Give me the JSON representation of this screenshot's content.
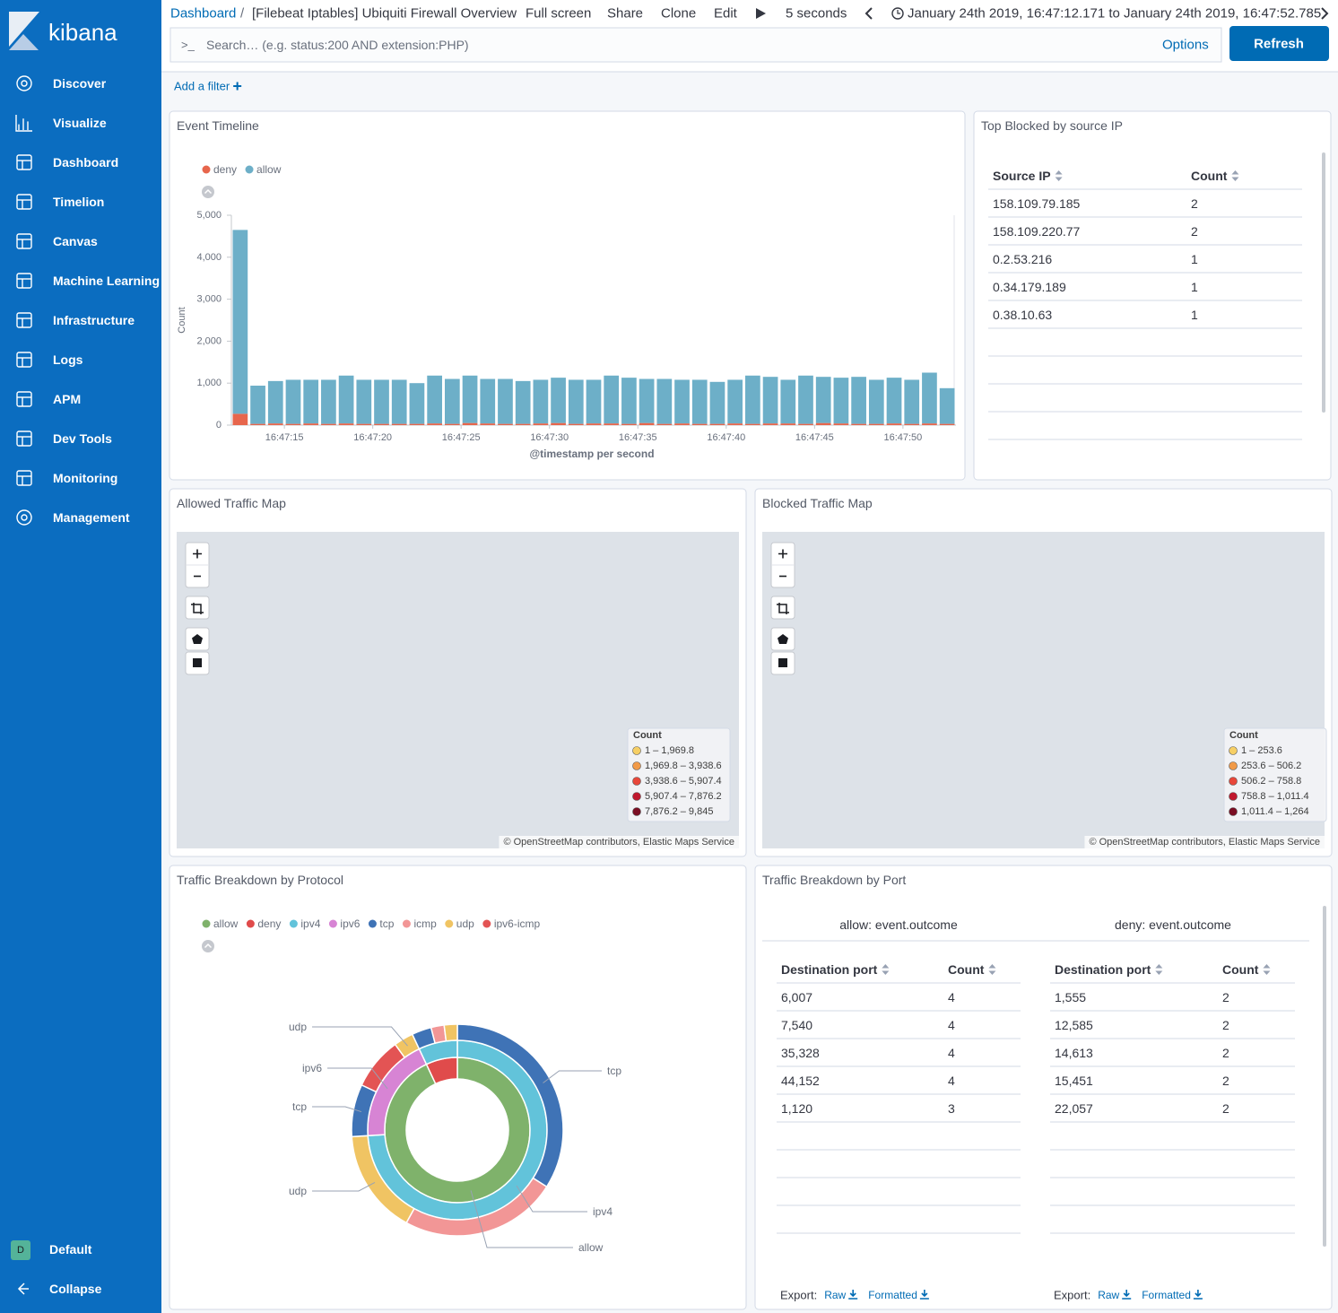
{
  "sidebar": {
    "brand": "kibana",
    "nav": [
      "Discover",
      "Visualize",
      "Dashboard",
      "Timelion",
      "Canvas",
      "Machine Learning",
      "Infrastructure",
      "Logs",
      "APM",
      "Dev Tools",
      "Monitoring",
      "Management"
    ],
    "space_initial": "D",
    "space": "Default",
    "collapse": "Collapse"
  },
  "header": {
    "breadcrumb_root": "Dashboard",
    "breadcrumb_separator": "/",
    "breadcrumb_current": "[Filebeat Iptables] Ubiquiti Firewall Overview",
    "actions": [
      "Full screen",
      "Share",
      "Clone",
      "Edit"
    ],
    "interval": "5 seconds",
    "time_range": "January 24th 2019, 16:47:12.171 to January 24th 2019, 16:47:52.785",
    "search_prompt": ">_",
    "search_placeholder": "Search… (e.g. status:200 AND extension:PHP)",
    "options": "Options",
    "refresh": "Refresh",
    "add_filter": "Add a filter"
  },
  "panels": {
    "timeline": {
      "title": "Event Timeline",
      "chart": {
        "type": "bar",
        "stacked": true,
        "categories": [
          null,
          null,
          null,
          "16:47:15",
          null,
          null,
          null,
          null,
          "16:47:20",
          null,
          null,
          null,
          null,
          "16:47:25",
          null,
          null,
          null,
          null,
          "16:47:30",
          null,
          null,
          null,
          null,
          "16:47:35",
          null,
          null,
          null,
          null,
          "16:47:40",
          null,
          null,
          null,
          null,
          "16:47:45",
          null,
          null,
          null,
          null,
          "16:47:50",
          null,
          null
        ],
        "series": [
          {
            "name": "deny",
            "color": "#e7664c",
            "values": [
              270,
              30,
              40,
              30,
              40,
              30,
              40,
              30,
              30,
              30,
              30,
              40,
              30,
              50,
              40,
              30,
              30,
              40,
              50,
              30,
              40,
              40,
              30,
              50,
              30,
              40,
              30,
              30,
              40,
              30,
              40,
              40,
              30,
              50,
              40,
              30,
              30,
              40,
              30,
              40,
              30
            ]
          },
          {
            "name": "allow",
            "color": "#6dafc8",
            "values": [
              4380,
              910,
              1010,
              1050,
              1040,
              1050,
              1140,
              1050,
              1050,
              1050,
              970,
              1140,
              1070,
              1130,
              1060,
              1070,
              1020,
              1040,
              1080,
              1050,
              1040,
              1140,
              1100,
              1050,
              1070,
              1040,
              1050,
              1000,
              1040,
              1150,
              1110,
              1040,
              1150,
              1100,
              1090,
              1120,
              1050,
              1090,
              1050,
              1210,
              850
            ]
          }
        ],
        "ylabel": "Count",
        "xlabel": "@timestamp per second",
        "ylim": [
          0,
          5000
        ],
        "yticks": [
          0,
          {
            "value": 1000,
            "label": "1,000"
          },
          {
            "value": 2000,
            "label": "2,000"
          },
          {
            "value": 3000,
            "label": "3,000"
          },
          {
            "value": 4000,
            "label": "4,000"
          },
          {
            "value": 5000,
            "label": "5,000"
          }
        ]
      }
    },
    "top_blocked": {
      "title": "Top Blocked by source IP",
      "columns": [
        "Source IP",
        "Count"
      ],
      "rows": [
        [
          "158.109.79.185",
          2
        ],
        [
          "158.109.220.77",
          2
        ],
        [
          "0.2.53.216",
          1
        ],
        [
          "0.34.179.189",
          1
        ],
        [
          "0.38.10.63",
          1
        ]
      ]
    },
    "allowed_map": {
      "title": "Allowed Traffic Map",
      "legend_title": "Count",
      "legend": [
        {
          "label": "1 – 1,969.8",
          "color": "#f6cf65"
        },
        {
          "label": "1,969.8 – 3,938.6",
          "color": "#f19a48"
        },
        {
          "label": "3,938.6 – 5,907.4",
          "color": "#e8473a"
        },
        {
          "label": "5,907.4 – 7,876.2",
          "color": "#c0182e"
        },
        {
          "label": "7,876.2 – 9,845",
          "color": "#7a0e23"
        }
      ],
      "attribution": "© OpenStreetMap contributors, Elastic Maps Service"
    },
    "blocked_map": {
      "title": "Blocked Traffic Map",
      "legend_title": "Count",
      "legend": [
        {
          "label": "1 – 253.6",
          "color": "#f6cf65"
        },
        {
          "label": "253.6 – 506.2",
          "color": "#f19a48"
        },
        {
          "label": "506.2 – 758.8",
          "color": "#e8473a"
        },
        {
          "label": "758.8 – 1,011.4",
          "color": "#c0182e"
        },
        {
          "label": "1,011.4 – 1,264",
          "color": "#7a0e23"
        }
      ],
      "attribution": "© OpenStreetMap contributors, Elastic Maps Service"
    },
    "protocol": {
      "title": "Traffic Breakdown by Protocol",
      "chart": {
        "type": "sunburst",
        "legend": [
          {
            "name": "allow",
            "color": "#7fb26b"
          },
          {
            "name": "deny",
            "color": "#e04b4b"
          },
          {
            "name": "ipv4",
            "color": "#62c3da"
          },
          {
            "name": "ipv6",
            "color": "#d784d4"
          },
          {
            "name": "tcp",
            "color": "#3f73b6"
          },
          {
            "name": "icmp",
            "color": "#f29696"
          },
          {
            "name": "udp",
            "color": "#f0c463"
          },
          {
            "name": "ipv6-icmp",
            "color": "#e35454"
          }
        ],
        "rings": [
          {
            "name": "allow",
            "value": 93,
            "children": [
              {
                "name": "ipv4",
                "value": 74,
                "children": [
                  {
                    "name": "tcp",
                    "value": 34
                  },
                  {
                    "name": "icmp",
                    "value": 24
                  },
                  {
                    "name": "udp",
                    "value": 16
                  }
                ]
              },
              {
                "name": "ipv6",
                "value": 19,
                "children": [
                  {
                    "name": "tcp",
                    "value": 8
                  },
                  {
                    "name": "ipv6-icmp",
                    "value": 8
                  },
                  {
                    "name": "udp",
                    "value": 3
                  }
                ]
              }
            ]
          },
          {
            "name": "deny",
            "value": 7,
            "children": [
              {
                "name": "ipv4",
                "value": 7,
                "children": [
                  {
                    "name": "tcp",
                    "value": 3
                  },
                  {
                    "name": "icmp",
                    "value": 2
                  },
                  {
                    "name": "udp",
                    "value": 2
                  }
                ]
              }
            ]
          }
        ]
      }
    },
    "ports": {
      "title": "Traffic Breakdown by Port",
      "tables": [
        {
          "caption": "allow: event.outcome",
          "columns": [
            "Destination port",
            "Count"
          ],
          "rows": [
            [
              "6,007",
              4
            ],
            [
              "7,540",
              4
            ],
            [
              "35,328",
              4
            ],
            [
              "44,152",
              4
            ],
            [
              "1,120",
              3
            ]
          ],
          "export": "Export:",
          "raw": "Raw",
          "formatted": "Formatted"
        },
        {
          "caption": "deny: event.outcome",
          "columns": [
            "Destination port",
            "Count"
          ],
          "rows": [
            [
              "1,555",
              2
            ],
            [
              "12,585",
              2
            ],
            [
              "14,613",
              2
            ],
            [
              "15,451",
              2
            ],
            [
              "22,057",
              2
            ]
          ],
          "export": "Export:",
          "raw": "Raw",
          "formatted": "Formatted"
        }
      ]
    }
  }
}
